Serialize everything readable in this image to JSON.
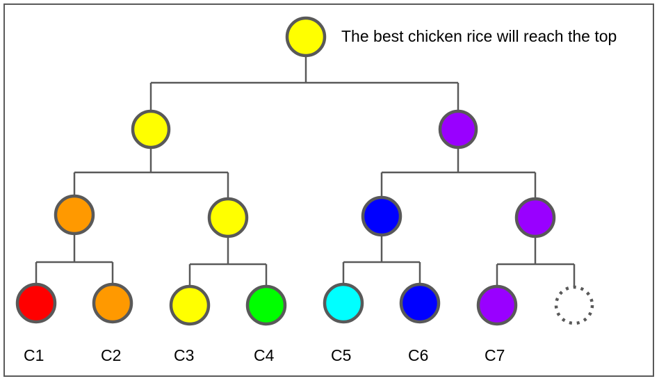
{
  "caption": "The best chicken rice will reach the top",
  "colors": {
    "edge": "#595959",
    "yellow": "#ffff00",
    "purple": "#9900ff",
    "orange": "#ff9900",
    "blue": "#0000ff",
    "red": "#ff0000",
    "green": "#00ff00",
    "cyan": "#00ffff"
  },
  "tree": {
    "root": {
      "color": "yellow"
    },
    "level1": [
      {
        "color": "yellow"
      },
      {
        "color": "purple"
      }
    ],
    "level2": [
      {
        "color": "orange"
      },
      {
        "color": "yellow"
      },
      {
        "color": "blue"
      },
      {
        "color": "purple"
      }
    ],
    "leaves": [
      {
        "label": "C1",
        "color": "red"
      },
      {
        "label": "C2",
        "color": "orange"
      },
      {
        "label": "C3",
        "color": "yellow"
      },
      {
        "label": "C4",
        "color": "green"
      },
      {
        "label": "C5",
        "color": "cyan"
      },
      {
        "label": "C6",
        "color": "blue"
      },
      {
        "label": "C7",
        "color": "purple"
      },
      {
        "label": "",
        "color": "empty"
      }
    ]
  }
}
